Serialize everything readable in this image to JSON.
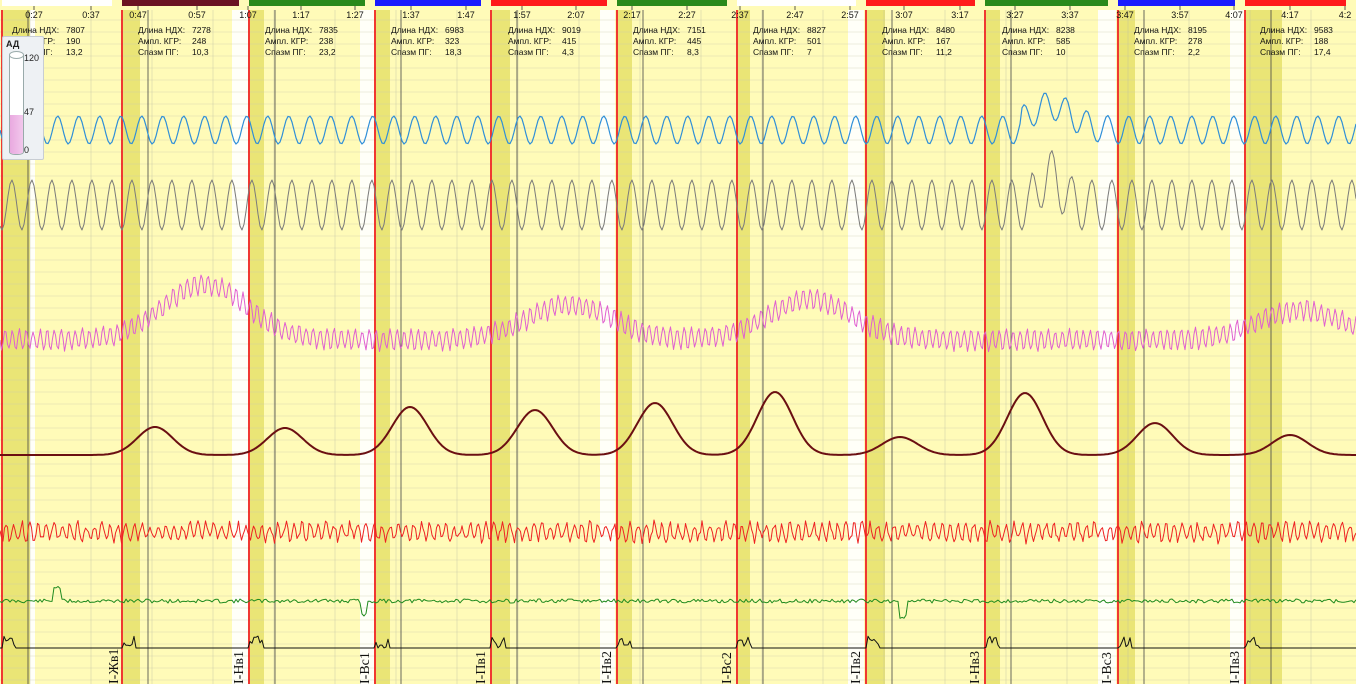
{
  "header": {
    "ticks": [
      "0:27",
      "0:37",
      "0:47",
      "0:57",
      "1:07",
      "1:17",
      "1:27",
      "1:37",
      "1:47",
      "1:57",
      "2:07",
      "2:17",
      "2:27",
      "2:37",
      "2:47",
      "2:57",
      "3:07",
      "3:17",
      "3:27",
      "3:37",
      "3:47",
      "3:57",
      "4:07",
      "4:17",
      "4:2"
    ],
    "bar_colors": [
      "#ffffff",
      "#6b1423",
      "#2a8a1a",
      "#1a1aff",
      "#ff1a1a",
      "#2a8a1a",
      "#ffffff",
      "#ff1a1a",
      "#2a8a1a",
      "#1a1aff",
      "#ff1a1a"
    ]
  },
  "ad_widget": {
    "title": "АД",
    "max_label": "120",
    "value_label": "47",
    "min_label": "0",
    "value": 47,
    "max": 120
  },
  "stats": {
    "labels": {
      "ndx": "Длина НДХ:",
      "kgr": "Ампл. КГР:",
      "pg": "Спазм ПГ:"
    },
    "blocks": [
      {
        "ndx": "7807",
        "kgr": "190",
        "pg": "13,2"
      },
      {
        "ndx": "7278",
        "kgr": "248",
        "pg": "10,3"
      },
      {
        "ndx": "7835",
        "kgr": "238",
        "pg": "23,2"
      },
      {
        "ndx": "6983",
        "kgr": "323",
        "pg": "18,3"
      },
      {
        "ndx": "9019",
        "kgr": "415",
        "pg": "4,3"
      },
      {
        "ndx": "7151",
        "kgr": "445",
        "pg": "8,3"
      },
      {
        "ndx": "8827",
        "kgr": "501",
        "pg": "7"
      },
      {
        "ndx": "8480",
        "kgr": "167",
        "pg": "11,2"
      },
      {
        "ndx": "8238",
        "kgr": "585",
        "pg": "10"
      },
      {
        "ndx": "8195",
        "kgr": "278",
        "pg": "2,2"
      },
      {
        "ndx": "9583",
        "kgr": "188",
        "pg": "17,4"
      }
    ]
  },
  "markers": [
    "I-Жв1",
    "I-Нв1",
    "I-Вс1",
    "I-Пв1",
    "I-Нв2",
    "I-Вс2",
    "I-Пв2",
    "I-Нв3",
    "I-Вс3",
    "I-Пв3"
  ],
  "chart_data": {
    "type": "line",
    "title": "",
    "x_unit": "m:ss",
    "x_range": [
      "0:22",
      "4:27"
    ],
    "channels": [
      {
        "color": "#2f8fd8",
        "description": "upper respiration"
      },
      {
        "color": "#7a7a7a",
        "description": "lower respiration"
      },
      {
        "color": "#e060d0",
        "description": "plethysmogram"
      },
      {
        "color": "#6b0f12",
        "description": "skin conductance"
      },
      {
        "color": "#ee2222",
        "description": "pulse"
      },
      {
        "color": "#1f8a1f",
        "description": "movement"
      },
      {
        "color": "#111111",
        "description": "tremor"
      }
    ]
  }
}
